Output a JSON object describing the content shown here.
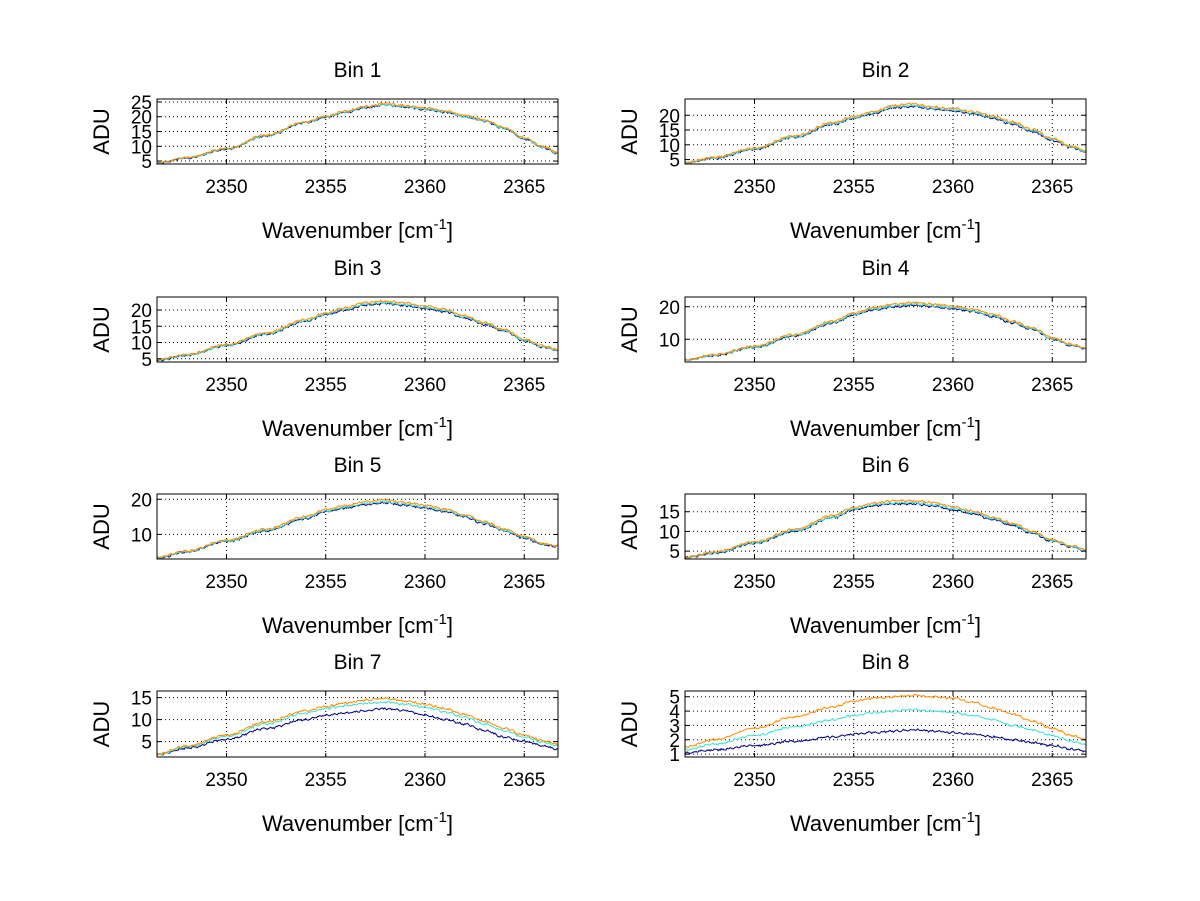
{
  "chart_data": [
    {
      "type": "line",
      "title": "Bin 1",
      "xlabel": "Wavenumber [cm",
      "xlabel_sup": "-1",
      "xlabel_end": "]",
      "ylabel": "ADU",
      "xlim": [
        2346.5,
        2366.7
      ],
      "ylim": [
        4,
        26
      ],
      "xticks": [
        "2350",
        "2355",
        "2360",
        "2365"
      ],
      "yticks": [
        "5",
        "10",
        "15",
        "20",
        "25"
      ],
      "grid": true,
      "x": [
        2346.5,
        2348,
        2350,
        2352,
        2354,
        2355,
        2356,
        2357,
        2358,
        2359,
        2360,
        2361,
        2362,
        2363,
        2364,
        2365,
        2366,
        2366.7
      ],
      "series": [
        {
          "color": "#000080",
          "values": [
            4.2,
            6.0,
            9.0,
            13.5,
            18.0,
            19.8,
            21.5,
            23.0,
            24.0,
            23.2,
            22.5,
            21.5,
            20.0,
            18.5,
            16.0,
            12.5,
            9.5,
            7.5
          ]
        },
        {
          "color": "#40e0d0",
          "values": [
            4.3,
            6.1,
            9.1,
            13.6,
            18.1,
            19.9,
            21.6,
            23.2,
            24.1,
            23.4,
            22.6,
            21.6,
            20.1,
            18.6,
            16.1,
            12.6,
            9.6,
            7.6
          ]
        },
        {
          "color": "#ff8c00",
          "values": [
            4.4,
            6.2,
            9.3,
            13.8,
            18.3,
            20.2,
            21.9,
            23.5,
            24.5,
            23.8,
            23.0,
            22.0,
            20.5,
            18.9,
            16.4,
            12.9,
            9.9,
            7.8
          ]
        }
      ]
    },
    {
      "type": "line",
      "title": "Bin 2",
      "xlabel": "Wavenumber [cm",
      "xlabel_sup": "-1",
      "xlabel_end": "]",
      "ylabel": "ADU",
      "xlim": [
        2346.5,
        2366.7
      ],
      "ylim": [
        3.5,
        25.5
      ],
      "xticks": [
        "2350",
        "2355",
        "2360",
        "2365"
      ],
      "yticks": [
        "5",
        "10",
        "15",
        "20"
      ],
      "grid": true,
      "x": [
        2346.5,
        2348,
        2350,
        2352,
        2354,
        2355,
        2356,
        2357,
        2358,
        2359,
        2360,
        2361,
        2362,
        2363,
        2364,
        2365,
        2366,
        2366.7
      ],
      "series": [
        {
          "color": "#000080",
          "values": [
            3.8,
            5.5,
            8.5,
            12.5,
            17.0,
            19.0,
            20.5,
            22.5,
            23.0,
            22.0,
            21.5,
            20.5,
            19.0,
            17.0,
            14.5,
            11.5,
            9.0,
            7.5
          ]
        },
        {
          "color": "#40e0d0",
          "values": [
            3.9,
            5.6,
            8.6,
            12.7,
            17.2,
            19.2,
            20.8,
            22.8,
            23.3,
            22.3,
            21.8,
            20.8,
            19.3,
            17.3,
            14.8,
            11.8,
            9.2,
            7.7
          ]
        },
        {
          "color": "#ff8c00",
          "values": [
            4.0,
            5.8,
            8.9,
            13.0,
            17.6,
            19.6,
            21.2,
            23.3,
            23.9,
            22.8,
            22.3,
            21.2,
            19.7,
            17.7,
            15.2,
            12.1,
            9.5,
            7.9
          ]
        }
      ]
    },
    {
      "type": "line",
      "title": "Bin 3",
      "xlabel": "Wavenumber [cm",
      "xlabel_sup": "-1",
      "xlabel_end": "]",
      "ylabel": "ADU",
      "xlim": [
        2346.5,
        2366.7
      ],
      "ylim": [
        4,
        24
      ],
      "xticks": [
        "2350",
        "2355",
        "2360",
        "2365"
      ],
      "yticks": [
        "5",
        "10",
        "15",
        "20"
      ],
      "grid": true,
      "x": [
        2346.5,
        2348,
        2350,
        2352,
        2354,
        2355,
        2356,
        2357,
        2358,
        2359,
        2360,
        2361,
        2362,
        2363,
        2364,
        2365,
        2366,
        2366.7
      ],
      "series": [
        {
          "color": "#000080",
          "values": [
            4.5,
            6.0,
            9.0,
            12.5,
            16.5,
            18.5,
            20.0,
            21.5,
            22.0,
            21.3,
            20.5,
            19.5,
            17.5,
            15.5,
            13.5,
            10.5,
            8.5,
            7.5
          ]
        },
        {
          "color": "#40e0d0",
          "values": [
            4.6,
            6.1,
            9.1,
            12.7,
            16.7,
            18.7,
            20.3,
            21.8,
            22.3,
            21.6,
            20.8,
            19.8,
            17.8,
            15.8,
            13.7,
            10.7,
            8.7,
            7.6
          ]
        },
        {
          "color": "#ff8c00",
          "values": [
            4.7,
            6.3,
            9.4,
            13.0,
            17.1,
            19.1,
            20.7,
            22.3,
            22.8,
            22.1,
            21.2,
            20.2,
            18.2,
            16.1,
            14.0,
            11.0,
            8.9,
            7.8
          ]
        }
      ]
    },
    {
      "type": "line",
      "title": "Bin 4",
      "xlabel": "Wavenumber [cm",
      "xlabel_sup": "-1",
      "xlabel_end": "]",
      "ylabel": "ADU",
      "xlim": [
        2346.5,
        2366.7
      ],
      "ylim": [
        3,
        23
      ],
      "xticks": [
        "2350",
        "2355",
        "2360",
        "2365"
      ],
      "yticks": [
        "10",
        "20"
      ],
      "grid": true,
      "x": [
        2346.5,
        2348,
        2350,
        2352,
        2354,
        2355,
        2356,
        2357,
        2358,
        2359,
        2360,
        2361,
        2362,
        2363,
        2364,
        2365,
        2366,
        2366.7
      ],
      "series": [
        {
          "color": "#000080",
          "values": [
            3.5,
            5.0,
            7.5,
            11.0,
            15.0,
            17.5,
            19.0,
            20.0,
            20.5,
            20.0,
            19.5,
            18.5,
            17.0,
            15.0,
            13.0,
            10.0,
            8.0,
            7.0
          ]
        },
        {
          "color": "#40e0d0",
          "values": [
            3.6,
            5.1,
            7.6,
            11.2,
            15.2,
            17.7,
            19.3,
            20.3,
            20.8,
            20.3,
            19.8,
            18.8,
            17.3,
            15.3,
            13.2,
            10.2,
            8.2,
            7.2
          ]
        },
        {
          "color": "#ff8c00",
          "values": [
            3.7,
            5.3,
            7.9,
            11.5,
            15.6,
            18.1,
            19.7,
            20.8,
            21.3,
            20.8,
            20.2,
            19.2,
            17.7,
            15.6,
            13.5,
            10.5,
            8.4,
            7.4
          ]
        }
      ]
    },
    {
      "type": "line",
      "title": "Bin 5",
      "xlabel": "Wavenumber [cm",
      "xlabel_sup": "-1",
      "xlabel_end": "]",
      "ylabel": "ADU",
      "xlim": [
        2346.5,
        2366.7
      ],
      "ylim": [
        3,
        21.5
      ],
      "xticks": [
        "2350",
        "2355",
        "2360",
        "2365"
      ],
      "yticks": [
        "10",
        "20"
      ],
      "grid": true,
      "x": [
        2346.5,
        2348,
        2350,
        2352,
        2354,
        2355,
        2356,
        2357,
        2358,
        2359,
        2360,
        2361,
        2362,
        2363,
        2364,
        2365,
        2366,
        2366.7
      ],
      "series": [
        {
          "color": "#000080",
          "values": [
            3.3,
            5.0,
            8.0,
            11.0,
            14.5,
            16.5,
            17.5,
            18.5,
            19.0,
            18.3,
            17.5,
            16.5,
            15.0,
            13.0,
            11.0,
            9.0,
            7.0,
            6.5
          ]
        },
        {
          "color": "#40e0d0",
          "values": [
            3.4,
            5.1,
            8.1,
            11.2,
            14.7,
            16.7,
            17.8,
            18.8,
            19.3,
            18.6,
            17.8,
            16.8,
            15.3,
            13.3,
            11.2,
            9.2,
            7.2,
            6.6
          ]
        },
        {
          "color": "#ff8c00",
          "values": [
            3.5,
            5.3,
            8.4,
            11.5,
            15.1,
            17.1,
            18.2,
            19.3,
            19.8,
            19.1,
            18.3,
            17.2,
            15.6,
            13.6,
            11.5,
            9.5,
            7.4,
            6.8
          ]
        }
      ]
    },
    {
      "type": "line",
      "title": "Bin 6",
      "xlabel": "Wavenumber [cm",
      "xlabel_sup": "-1",
      "xlabel_end": "]",
      "ylabel": "ADU",
      "xlim": [
        2346.5,
        2366.7
      ],
      "ylim": [
        3,
        19.5
      ],
      "xticks": [
        "2350",
        "2355",
        "2360",
        "2365"
      ],
      "yticks": [
        "5",
        "10",
        "15"
      ],
      "grid": true,
      "x": [
        2346.5,
        2348,
        2350,
        2352,
        2354,
        2355,
        2356,
        2357,
        2358,
        2359,
        2360,
        2361,
        2362,
        2363,
        2364,
        2365,
        2366,
        2366.7
      ],
      "series": [
        {
          "color": "#000080",
          "values": [
            3.3,
            4.5,
            7.0,
            10.0,
            13.5,
            15.5,
            16.5,
            17.0,
            17.0,
            16.5,
            15.5,
            14.5,
            13.0,
            11.5,
            9.5,
            7.5,
            6.0,
            5.0
          ]
        },
        {
          "color": "#40e0d0",
          "values": [
            3.4,
            4.6,
            7.1,
            10.2,
            13.7,
            15.7,
            16.8,
            17.3,
            17.3,
            16.8,
            15.8,
            14.8,
            13.3,
            11.8,
            9.7,
            7.7,
            6.2,
            5.1
          ]
        },
        {
          "color": "#ff8c00",
          "values": [
            3.5,
            4.8,
            7.4,
            10.5,
            14.1,
            16.1,
            17.2,
            17.8,
            17.8,
            17.3,
            16.2,
            15.2,
            13.6,
            12.1,
            10.0,
            7.9,
            6.4,
            5.3
          ]
        }
      ]
    },
    {
      "type": "line",
      "title": "Bin 7",
      "xlabel": "Wavenumber [cm",
      "xlabel_sup": "-1",
      "xlabel_end": "]",
      "ylabel": "ADU",
      "xlim": [
        2346.5,
        2366.7
      ],
      "ylim": [
        1.5,
        16.5
      ],
      "xticks": [
        "2350",
        "2355",
        "2360",
        "2365"
      ],
      "yticks": [
        "5",
        "10",
        "15"
      ],
      "grid": true,
      "x": [
        2346.5,
        2348,
        2350,
        2352,
        2354,
        2355,
        2356,
        2357,
        2358,
        2359,
        2360,
        2361,
        2362,
        2363,
        2364,
        2365,
        2366,
        2366.7
      ],
      "series": [
        {
          "color": "#000080",
          "values": [
            2.0,
            3.5,
            5.5,
            8.0,
            10.0,
            11.0,
            11.5,
            12.0,
            12.5,
            12.0,
            11.0,
            10.0,
            9.0,
            7.5,
            6.0,
            5.0,
            4.0,
            3.2
          ]
        },
        {
          "color": "#40e0d0",
          "values": [
            2.1,
            3.8,
            6.2,
            9.0,
            11.5,
            12.5,
            13.2,
            13.7,
            14.0,
            13.5,
            12.8,
            11.8,
            10.5,
            9.0,
            7.5,
            6.0,
            4.8,
            4.0
          ]
        },
        {
          "color": "#ff8c00",
          "values": [
            2.2,
            4.0,
            6.5,
            9.5,
            12.0,
            13.0,
            13.8,
            14.4,
            14.8,
            14.2,
            13.5,
            12.5,
            11.2,
            9.6,
            8.0,
            6.5,
            5.2,
            4.3
          ]
        }
      ]
    },
    {
      "type": "line",
      "title": "Bin 8",
      "xlabel": "Wavenumber [cm",
      "xlabel_sup": "-1",
      "xlabel_end": "]",
      "ylabel": "ADU",
      "xlim": [
        2346.5,
        2366.7
      ],
      "ylim": [
        0.8,
        5.4
      ],
      "xticks": [
        "2350",
        "2355",
        "2360",
        "2365"
      ],
      "yticks": [
        "1",
        "2",
        "3",
        "4",
        "5"
      ],
      "grid": true,
      "x": [
        2346.5,
        2348,
        2350,
        2352,
        2354,
        2355,
        2356,
        2357,
        2358,
        2359,
        2360,
        2361,
        2362,
        2363,
        2364,
        2365,
        2366,
        2366.7
      ],
      "series": [
        {
          "color": "#000080",
          "values": [
            1.1,
            1.3,
            1.6,
            1.9,
            2.2,
            2.4,
            2.5,
            2.6,
            2.7,
            2.6,
            2.5,
            2.4,
            2.2,
            2.0,
            1.8,
            1.6,
            1.35,
            1.2
          ]
        },
        {
          "color": "#40e0d0",
          "values": [
            1.3,
            1.7,
            2.3,
            2.9,
            3.4,
            3.7,
            3.9,
            4.0,
            4.1,
            4.0,
            3.9,
            3.7,
            3.4,
            3.0,
            2.7,
            2.3,
            1.9,
            1.7
          ]
        },
        {
          "color": "#ff8c00",
          "values": [
            1.5,
            2.0,
            2.8,
            3.6,
            4.3,
            4.7,
            4.9,
            5.0,
            5.1,
            5.0,
            4.9,
            4.6,
            4.2,
            3.8,
            3.3,
            2.8,
            2.3,
            2.0
          ]
        }
      ]
    }
  ]
}
